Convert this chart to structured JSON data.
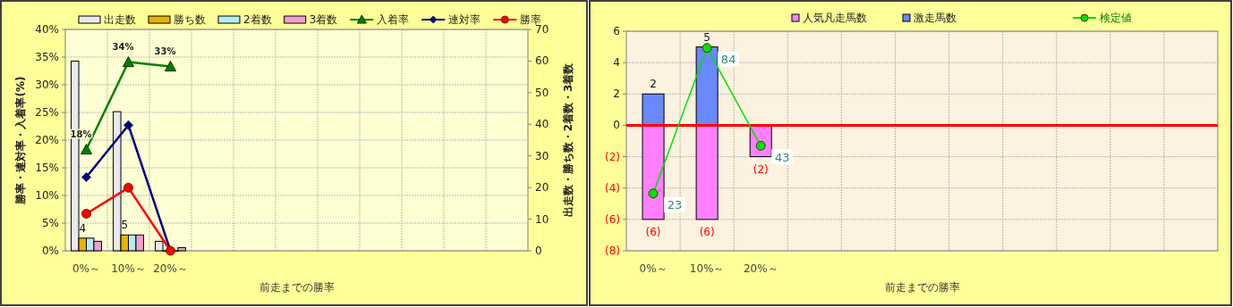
{
  "chart_data": [
    {
      "type": "bar",
      "xlabel": "前走までの勝率",
      "ylabel": "勝率・連対率・入着率(%)",
      "y2label": "出走数・勝ち数・2着数・3着数",
      "categories": [
        "0%～",
        "10%～",
        "20%～",
        null,
        null,
        null,
        null,
        null,
        null,
        null,
        null
      ],
      "ylim": [
        0,
        40
      ],
      "yticks": [
        {
          "value": 0,
          "label": "0%"
        },
        {
          "value": 5,
          "label": "5%"
        },
        {
          "value": 10,
          "label": "10%"
        },
        {
          "value": 15,
          "label": "15%"
        },
        {
          "value": 20,
          "label": "20%"
        },
        {
          "value": 25,
          "label": "25%"
        },
        {
          "value": 30,
          "label": "30%"
        },
        {
          "value": 35,
          "label": "35%"
        },
        {
          "value": 40,
          "label": "40%"
        }
      ],
      "y2lim": [
        0,
        70
      ],
      "y2ticks": [
        0,
        10,
        20,
        30,
        40,
        50,
        60,
        70
      ],
      "grid": true,
      "legend": "top",
      "series": [
        {
          "name": "出走数",
          "axis": "y2",
          "color": "#e8e8ee",
          "values": [
            60,
            44,
            3,
            null,
            null,
            null,
            null,
            null,
            null,
            null,
            null
          ]
        },
        {
          "name": "勝ち数",
          "axis": "y2",
          "color": "#e6b400",
          "values": [
            4,
            5,
            0,
            null,
            null,
            null,
            null,
            null,
            null,
            null,
            null
          ],
          "value_labels": [
            "4",
            "5",
            null,
            null,
            null,
            null,
            null,
            null,
            null,
            null,
            null
          ]
        },
        {
          "name": "2着数",
          "axis": "y2",
          "color": "#b4ecf0",
          "values": [
            4,
            5,
            0,
            null,
            null,
            null,
            null,
            null,
            null,
            null,
            null
          ]
        },
        {
          "name": "3着数",
          "axis": "y2",
          "color": "#f0a0d0",
          "values": [
            3,
            5,
            1,
            null,
            null,
            null,
            null,
            null,
            null,
            null,
            null
          ]
        },
        {
          "name": "入着率",
          "type": "line",
          "axis": "y",
          "color": "#008000",
          "marker": "triangle",
          "values": [
            18.3,
            34.1,
            33.3,
            null,
            null,
            null,
            null,
            null,
            null,
            null,
            null
          ],
          "value_labels": [
            "18%",
            "34%",
            "33%",
            null,
            null,
            null,
            null,
            null,
            null,
            null,
            null
          ]
        },
        {
          "name": "連対率",
          "type": "line",
          "axis": "y",
          "color": "#000080",
          "marker": "diamond",
          "values": [
            13.3,
            22.7,
            0,
            null,
            null,
            null,
            null,
            null,
            null,
            null,
            null
          ]
        },
        {
          "name": "勝率",
          "type": "line",
          "axis": "y",
          "color": "#ff0000",
          "marker": "circle",
          "values": [
            6.7,
            11.4,
            0,
            null,
            null,
            null,
            null,
            null,
            null,
            null,
            null
          ]
        }
      ]
    },
    {
      "type": "bar",
      "xlabel": "前走までの勝率",
      "stacked": true,
      "categories": [
        "0%～",
        "10%～",
        "20%～",
        null,
        null,
        null,
        null,
        null,
        null,
        null,
        null
      ],
      "ylim": [
        -8,
        6
      ],
      "yticks": [
        {
          "value": -8,
          "label": "(8)"
        },
        {
          "value": -6,
          "label": "(6)"
        },
        {
          "value": -4,
          "label": "(4)"
        },
        {
          "value": -2,
          "label": "(2)"
        },
        0,
        2,
        4,
        6
      ],
      "y2lim": [
        -1,
        91
      ],
      "grid": true,
      "legend": "top",
      "ref_lines": [
        {
          "axis": "y",
          "value": 0,
          "color": "#ff0000"
        }
      ],
      "series": [
        {
          "name": "人気凡走馬数",
          "axis": "y",
          "color": "#ff80ff",
          "values": [
            -6,
            -6,
            -2,
            null,
            null,
            null,
            null,
            null,
            null,
            null,
            null
          ],
          "value_labels": [
            "(6)",
            "(6)",
            "(2)",
            null,
            null,
            null,
            null,
            null,
            null,
            null,
            null
          ]
        },
        {
          "name": "激走馬数",
          "axis": "y",
          "color": "#6a88ff",
          "values": [
            2,
            5,
            null,
            null,
            null,
            null,
            null,
            null,
            null,
            null,
            null
          ],
          "value_labels": [
            "2",
            "5",
            null,
            null,
            null,
            null,
            null,
            null,
            null,
            null,
            null
          ]
        },
        {
          "name": "検定値",
          "type": "line",
          "axis": "y2",
          "color": "#00e000",
          "marker": "circle",
          "values": [
            23,
            84,
            43,
            null,
            null,
            null,
            null,
            null,
            null,
            null,
            null
          ],
          "value_labels": [
            "23",
            "84",
            "43",
            null,
            null,
            null,
            null,
            null,
            null,
            null,
            null
          ]
        }
      ]
    }
  ]
}
